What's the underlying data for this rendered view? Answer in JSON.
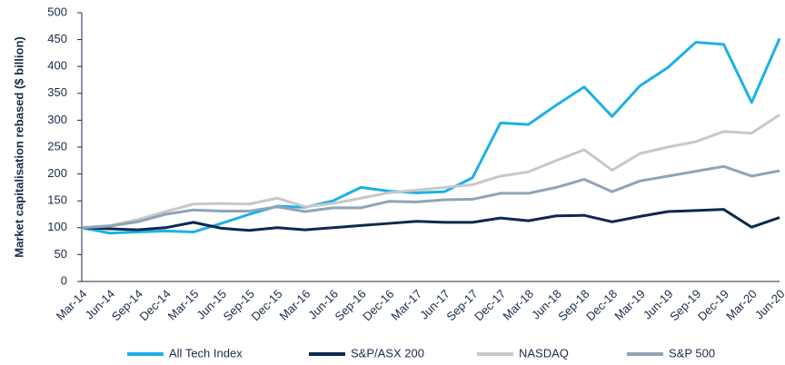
{
  "chart_data": {
    "type": "line",
    "y_label": "Market capitalisation rebased ($ billion)",
    "categories": [
      "Mar-14",
      "Jun-14",
      "Sep-14",
      "Dec-14",
      "Mar-15",
      "Jun-15",
      "Sep-15",
      "Dec-15",
      "Mar-16",
      "Jun-16",
      "Sep-16",
      "Dec-16",
      "Mar-17",
      "Jun-17",
      "Sep-17",
      "Dec-17",
      "Mar-18",
      "Jun-18",
      "Sep-18",
      "Dec-18",
      "Mar-19",
      "Jun-19",
      "Sep-19",
      "Dec-19",
      "Mar-20",
      "Jun-20"
    ],
    "series": [
      {
        "name": "All Tech Index",
        "color": "#1bb1e7",
        "values": [
          100,
          90,
          92,
          94,
          92,
          108,
          125,
          140,
          138,
          150,
          175,
          168,
          165,
          167,
          193,
          295,
          292,
          328,
          362,
          307,
          364,
          398,
          445,
          441,
          333,
          452
        ]
      },
      {
        "name": "S&P/ASX 200",
        "color": "#0d2a4f",
        "values": [
          100,
          98,
          96,
          100,
          110,
          99,
          95,
          100,
          96,
          100,
          104,
          108,
          112,
          110,
          110,
          118,
          113,
          122,
          123,
          111,
          121,
          130,
          132,
          134,
          101,
          119
        ]
      },
      {
        "name": "NASDAQ",
        "color": "#c8c8c8",
        "values": [
          100,
          104,
          115,
          130,
          144,
          145,
          144,
          155,
          139,
          145,
          155,
          165,
          170,
          175,
          180,
          196,
          204,
          225,
          245,
          207,
          238,
          250,
          260,
          279,
          276,
          310
        ]
      },
      {
        "name": "S&P 500",
        "color": "#8fa3b8",
        "values": [
          100,
          103,
          111,
          125,
          133,
          131,
          131,
          139,
          130,
          137,
          137,
          149,
          148,
          152,
          153,
          164,
          164,
          175,
          190,
          167,
          187,
          196,
          205,
          214,
          196,
          206
        ]
      }
    ],
    "ylim": [
      0,
      500
    ],
    "yticks": [
      0,
      50,
      100,
      150,
      200,
      250,
      300,
      350,
      400,
      450,
      500
    ],
    "grid": false,
    "legend": "bottom"
  }
}
